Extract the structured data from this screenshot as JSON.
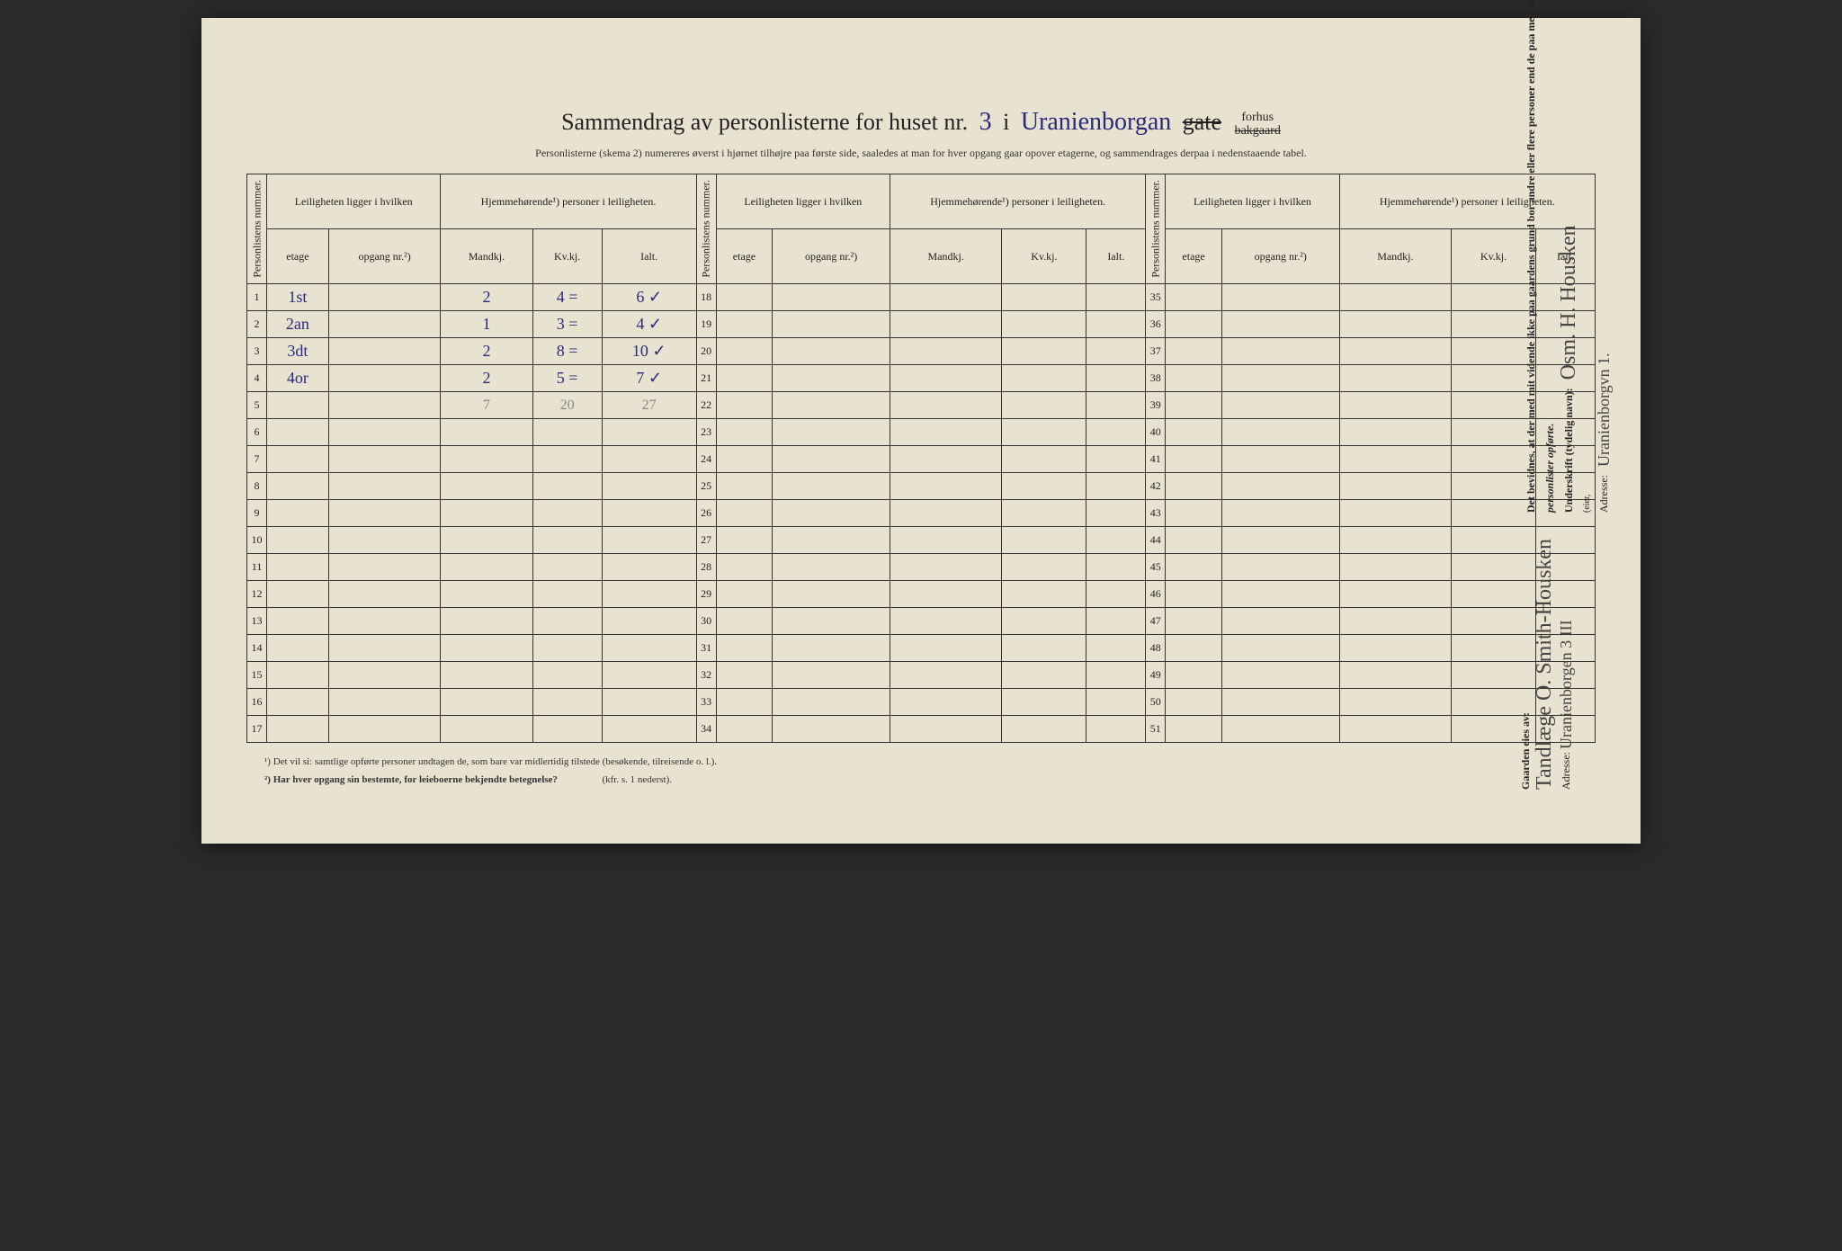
{
  "title": {
    "prefix": "Sammendrag av personlisterne for huset nr.",
    "house_nr": "3",
    "mid": "i",
    "street_hw": "Uranienborgan",
    "gate": "gate",
    "forhus": "forhus",
    "bakgaard": "bakgaard"
  },
  "subtitle": "Personlisterne (skema 2) numereres øverst i hjørnet tilhøjre paa første side, saaledes at man for hver opgang gaar opover etagerne, og sammendrages derpaa i nedenstaaende tabel.",
  "headers": {
    "nummer_vert": "Personlistens nummer.",
    "leilighet": "Leiligheten ligger i hvilken",
    "hjemme": "Hjemmehørende¹) personer i leiligheten.",
    "etage": "etage",
    "opgang": "opgang nr.²)",
    "mandkj": "Mandkj.",
    "kvkj": "Kv.kj.",
    "ialt": "Ialt."
  },
  "rows": [
    {
      "n": "1",
      "etage": "1st",
      "mand": "2",
      "kv": "4",
      "eq": "=",
      "ialt": "6",
      "tick": "✓"
    },
    {
      "n": "2",
      "etage": "2an",
      "mand": "1",
      "kv": "3",
      "eq": "=",
      "ialt": "4",
      "tick": "✓"
    },
    {
      "n": "3",
      "etage": "3dt",
      "mand": "2",
      "kv": "8",
      "eq": "=",
      "ialt": "10",
      "tick": "✓"
    },
    {
      "n": "4",
      "etage": "4or",
      "mand": "2",
      "kv": "5",
      "eq": "=",
      "ialt": "7",
      "tick": "✓",
      "check": "✓"
    }
  ],
  "pencil_totals": {
    "mand": "7",
    "kv": "20",
    "ialt": "27"
  },
  "col1_seq": [
    "1",
    "2",
    "3",
    "4",
    "5",
    "6",
    "7",
    "8",
    "9",
    "10",
    "11",
    "12",
    "13",
    "14",
    "15",
    "16",
    "17"
  ],
  "col2_seq": [
    "18",
    "19",
    "20",
    "21",
    "22",
    "23",
    "24",
    "25",
    "26",
    "27",
    "28",
    "29",
    "30",
    "31",
    "32",
    "33",
    "34"
  ],
  "col3_seq": [
    "35",
    "36",
    "37",
    "38",
    "39",
    "40",
    "41",
    "42",
    "43",
    "44",
    "45",
    "46",
    "47",
    "48",
    "49",
    "50",
    "51"
  ],
  "footnotes": {
    "f1": "¹)  Det vil si: samtlige opførte personer undtagen de, som bare var midlertidig tilstede (besøkende, tilreisende o. l.).",
    "f2": "²)  Har hver opgang sin bestemte, for leieboerne bekjendte betegnelse?",
    "f2_ref": "(kfr. s. 1 nederst)."
  },
  "right": {
    "bevidnes": "Det bevidnes, at der med mit vidende ikke paa gaardens grund bor andre eller flere personer end de paa medfølgende (antal:)",
    "antal_hw": "4",
    "opforte": "personlister opførte.",
    "underskrift_label": "Underskrift (tydelig navn):",
    "underskrift_hw": "Osm. H. Housken",
    "eier_label": "(eier,",
    "adresse_label": "Adresse:",
    "adresse_hw": "Uranienborgvn 1.",
    "gaarden_label": "Gaarden eies av:",
    "gaarden_hw": "Tandlæge O. Smith-Housken",
    "adresse2_label": "Adresse:",
    "adresse2_hw": "Uranienborgen 3 III"
  },
  "colors": {
    "paper": "#e8e2d0",
    "ink": "#222222",
    "hw_blue": "#2a2a7a",
    "hw_pencil": "#888888"
  }
}
